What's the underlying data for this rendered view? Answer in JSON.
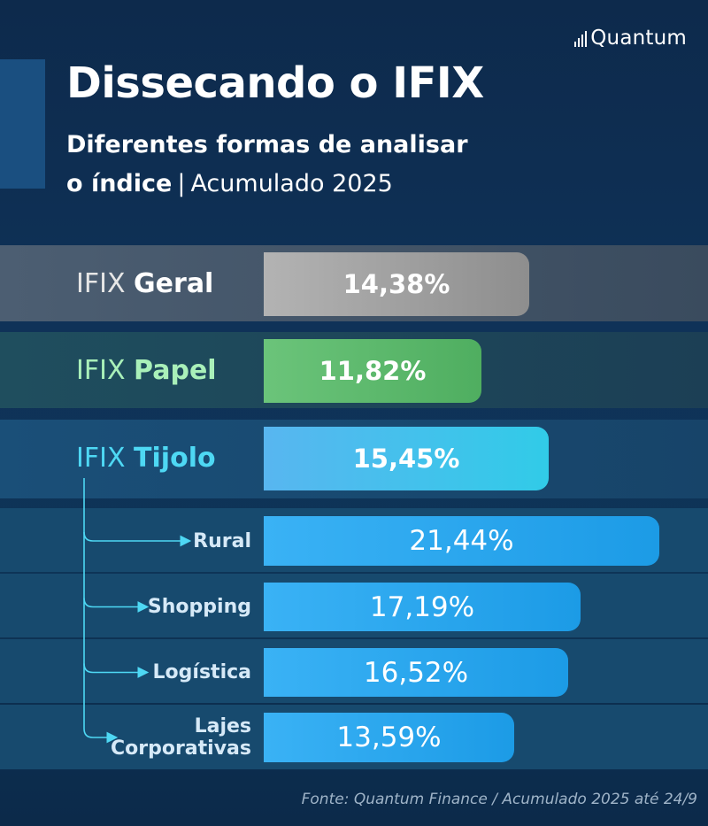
{
  "brand": {
    "logo_text": "Quantum"
  },
  "header": {
    "title": "Dissecando o IFIX",
    "subtitle_line1": "Diferentes formas de analisar",
    "subtitle_line2_bold": "o índice",
    "subtitle_separator": "|",
    "subtitle_line2_light": "Acumulado 2025"
  },
  "chart_data": {
    "type": "bar",
    "orientation": "horizontal",
    "title": "Dissecando o IFIX",
    "unit": "%",
    "categories": [
      {
        "prefix": "IFIX",
        "name": "Geral",
        "value": 14.38,
        "label": "14,38%",
        "level": "main",
        "color": "#9a9a9a",
        "label_color": "#ffffff"
      },
      {
        "prefix": "IFIX",
        "name": "Papel",
        "value": 11.82,
        "label": "11,82%",
        "level": "main",
        "color": "#5cba6d",
        "label_color": "#a9f0b9"
      },
      {
        "prefix": "IFIX",
        "name": "Tijolo",
        "value": 15.45,
        "label": "15,45%",
        "level": "main",
        "color": "#3cc6ec",
        "label_color": "#4ed8f4"
      },
      {
        "name": "Rural",
        "value": 21.44,
        "label": "21,44%",
        "level": "sub",
        "parent": "Tijolo",
        "color": "#2aa7ef"
      },
      {
        "name": "Shopping",
        "value": 17.19,
        "label": "17,19%",
        "level": "sub",
        "parent": "Tijolo",
        "color": "#2aa7ef"
      },
      {
        "name": "Logística",
        "value": 16.52,
        "label": "16,52%",
        "level": "sub",
        "parent": "Tijolo",
        "color": "#2aa7ef"
      },
      {
        "name": "Lajes Corporativas",
        "name_lines": [
          "Lajes",
          "Corporativas"
        ],
        "value": 13.59,
        "label": "13,59%",
        "level": "sub",
        "parent": "Tijolo",
        "color": "#2aa7ef"
      }
    ],
    "xlim": [
      0,
      22.68
    ],
    "grid": false,
    "legend": "none"
  },
  "footnote": "Fonte: Quantum Finance / Acumulado 2025 até 24/9"
}
